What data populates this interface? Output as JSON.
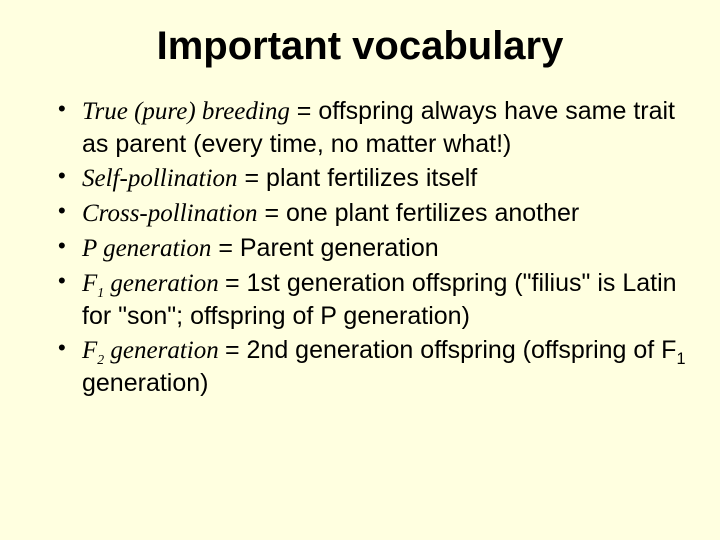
{
  "slide": {
    "title": "Important vocabulary",
    "background_color": "#ffffe0",
    "text_color": "#000000",
    "title_fontsize": 40,
    "body_fontsize": 25,
    "term_font": "serif-italic",
    "items": [
      {
        "term": "True (pure) breeding",
        "def_pre": " = offspring always have same trait as parent (every time, no matter what!)"
      },
      {
        "term": "Self-pollination",
        "def_pre": " = plant fertilizes itself"
      },
      {
        "term": "Cross-pollination",
        "def_pre": " = one plant fertilizes another"
      },
      {
        "term": "P generation",
        "def_pre": " = Parent generation"
      },
      {
        "term_prefix": "F",
        "term_sub": "1",
        "term_suffix": " generation ",
        "def_pre": "= 1st generation offspring (\"filius\" is Latin for \"son\"; offspring of P generation)"
      },
      {
        "term_prefix": "F",
        "term_sub": "2",
        "term_suffix": " generation ",
        "def_pre": "= 2nd generation offspring (offspring of F",
        "def_sub": "1",
        "def_post": " generation)"
      }
    ]
  }
}
